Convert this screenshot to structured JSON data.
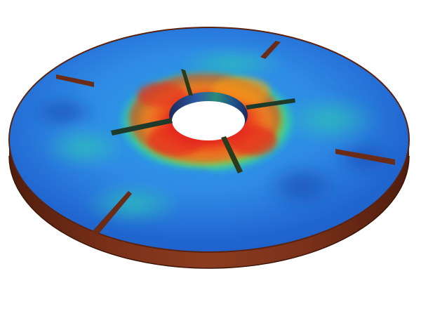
{
  "scene": {
    "subject": "annular-disk-with-baffles",
    "colormap": "jet"
  },
  "colors": {
    "background": "#ffffff",
    "rim_side": "#6e2a14",
    "rim_side_light": "#8a3a1c",
    "rim_side_dark": "#4a1b0c",
    "baffle": "#6a2c16",
    "inner_wall_dark": "#1d2a5a",
    "inner_wall_mid": "#2b5aa6",
    "field_low": "#1f5fc8",
    "field_blue": "#2f8ae6",
    "field_cyan": "#2cc0b8",
    "field_green": "#7bd23a",
    "field_yellow": "#f2e62a",
    "field_orange": "#f59a1a",
    "field_red": "#e52a1e"
  }
}
